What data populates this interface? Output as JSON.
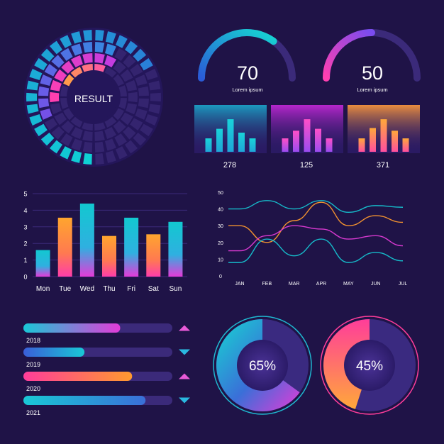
{
  "colors": {
    "background": "#1f1347",
    "panel": "#2a1a63",
    "track": "#3b2a7a",
    "cyan": "#16c4d2",
    "blue": "#3a6fd8",
    "magenta": "#e33bd8",
    "pink": "#ff3d9a",
    "orange": "#ff9a2e",
    "purple": "#7a3ce0"
  },
  "result_dial": {
    "label": "RESULT"
  },
  "gauges": [
    {
      "value": "70",
      "caption": "Lorem ipsum",
      "fraction": 0.7,
      "gradient": "cyan"
    },
    {
      "value": "50",
      "caption": "Lorem ipsum",
      "fraction": 0.5,
      "gradient": "magenta"
    }
  ],
  "mini_cards": [
    {
      "value": "278",
      "bars": [
        0.35,
        0.6,
        0.85,
        0.5,
        0.35
      ],
      "theme": "cyan"
    },
    {
      "value": "125",
      "bars": [
        0.35,
        0.55,
        0.85,
        0.6,
        0.35
      ],
      "theme": "magenta"
    },
    {
      "value": "371",
      "bars": [
        0.35,
        0.62,
        0.85,
        0.55,
        0.35
      ],
      "theme": "orange"
    }
  ],
  "chart_data": [
    {
      "type": "bar",
      "categories": [
        "Mon",
        "Tue",
        "Wed",
        "Thu",
        "Fri",
        "Sat",
        "Sun"
      ],
      "values": [
        1.6,
        3.55,
        4.4,
        2.45,
        3.55,
        2.55,
        3.3
      ],
      "colors": [
        "cyan",
        "orange",
        "cyan",
        "orange",
        "cyan",
        "orange",
        "cyan"
      ],
      "yticks": [
        "0",
        "1",
        "2",
        "3",
        "4",
        "5"
      ],
      "ylim": [
        0,
        5
      ],
      "grid": true
    },
    {
      "type": "line",
      "x": [
        "JAN",
        "FEB",
        "MAR",
        "APR",
        "MAY",
        "JUN",
        "JUL"
      ],
      "yticks": [
        "0",
        "10",
        "20",
        "30",
        "40",
        "50"
      ],
      "ylim": [
        0,
        50
      ],
      "grid": false,
      "series": [
        {
          "color": "#16c4d2",
          "values": [
            40,
            45,
            40,
            45,
            38,
            42,
            41
          ]
        },
        {
          "color": "#ff9a2e",
          "values": [
            30,
            20,
            33,
            44,
            30,
            36,
            32
          ]
        },
        {
          "color": "#e33bd8",
          "values": [
            15,
            24,
            30,
            28,
            22,
            24,
            18
          ]
        },
        {
          "color": "#16c4d2",
          "values": [
            8,
            22,
            12,
            22,
            8,
            14,
            9
          ]
        }
      ]
    },
    {
      "type": "bar",
      "orientation": "horizontal",
      "categories": [
        "2018",
        "2019",
        "2020",
        "2021"
      ],
      "values": [
        0.65,
        0.41,
        0.73,
        0.82
      ],
      "gradients": [
        "cyan-magenta",
        "blue-cyan",
        "pink-orange",
        "cyan-blue"
      ],
      "trend": [
        "up",
        "down",
        "up",
        "down"
      ]
    },
    {
      "type": "pie",
      "slices": [
        {
          "value": 65,
          "label": "65%",
          "gradient": "cyan-magenta"
        },
        {
          "value": 45,
          "label": "45%",
          "gradient": "orange-pink"
        }
      ]
    }
  ]
}
